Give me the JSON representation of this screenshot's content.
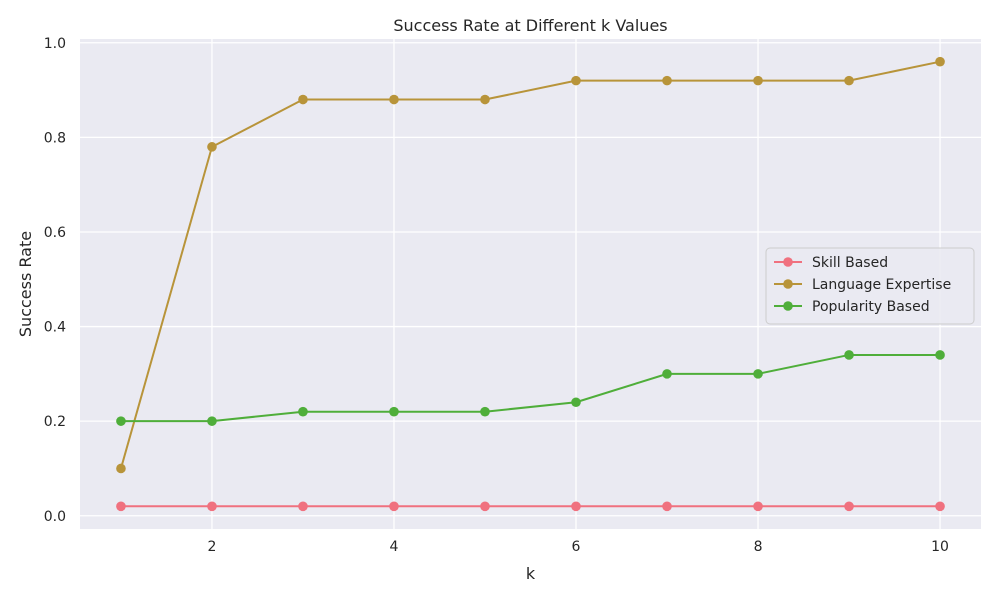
{
  "chart_data": {
    "type": "line",
    "title": "Success Rate at Different k Values",
    "xlabel": "k",
    "ylabel": "Success Rate",
    "x": [
      1,
      2,
      3,
      4,
      5,
      6,
      7,
      8,
      9,
      10
    ],
    "xlim": [
      0.55,
      10.45
    ],
    "ylim": [
      -0.028,
      1.008
    ],
    "xticks": [
      2,
      4,
      6,
      8,
      10
    ],
    "yticks": [
      0.0,
      0.2,
      0.4,
      0.6,
      0.8,
      1.0
    ],
    "xtick_labels": [
      "2",
      "4",
      "6",
      "8",
      "10"
    ],
    "ytick_labels": [
      "0.0",
      "0.2",
      "0.4",
      "0.6",
      "0.8",
      "1.0"
    ],
    "grid": true,
    "legend_position": "center-right",
    "series": [
      {
        "name": "Skill Based",
        "color": "#f0717f",
        "values": [
          0.02,
          0.02,
          0.02,
          0.02,
          0.02,
          0.02,
          0.02,
          0.02,
          0.02,
          0.02
        ]
      },
      {
        "name": "Language Expertise",
        "color": "#b8943a",
        "values": [
          0.1,
          0.78,
          0.88,
          0.88,
          0.88,
          0.92,
          0.92,
          0.92,
          0.92,
          0.96
        ]
      },
      {
        "name": "Popularity Based",
        "color": "#4fae3a",
        "values": [
          0.2,
          0.2,
          0.22,
          0.22,
          0.22,
          0.24,
          0.3,
          0.3,
          0.34,
          0.34
        ]
      }
    ]
  },
  "colors": {
    "plot_background": "#eaeaf2",
    "grid": "#ffffff",
    "text": "#262626"
  }
}
